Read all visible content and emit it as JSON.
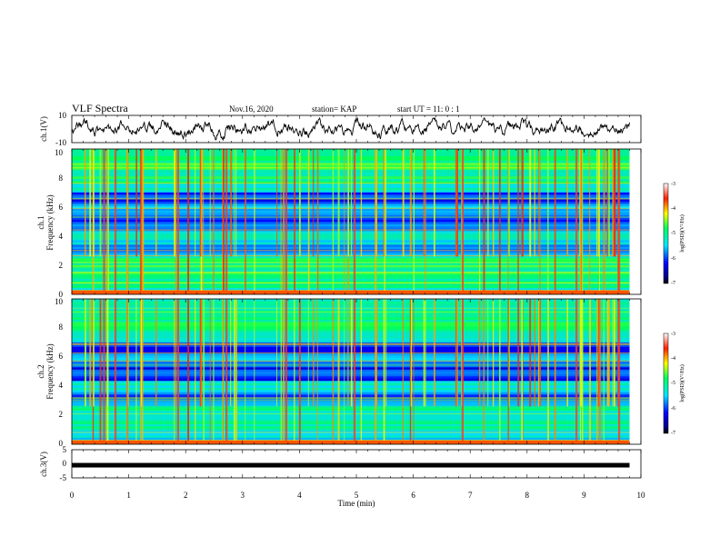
{
  "header": {
    "title": "VLF Spectra",
    "date": "Nov.16, 2020",
    "station": "station= KAP",
    "start": "start  UT  =   11: 0  : 1"
  },
  "chart_data": [
    {
      "type": "line",
      "name": "ch1_waveform",
      "ylabel": "ch.1(V)",
      "ylim": [
        -10,
        10
      ],
      "yticks": [
        "10",
        "-10"
      ],
      "xlim": [
        0,
        10
      ],
      "trace_end_min": 9.8,
      "color": "#000000"
    },
    {
      "type": "heatmap",
      "name": "ch1_spectrogram",
      "ylabel_top": "ch.1",
      "ylabel": "Frequency  (kHz)",
      "ylim": [
        0,
        10
      ],
      "yticks": [
        "0",
        "2",
        "4",
        "6",
        "8",
        "10"
      ],
      "xlim": [
        0,
        10
      ],
      "data_end_min": 9.8,
      "colorbar": {
        "label": "log(PSD)(V²/Hz)",
        "ticks": [
          "-3",
          "-4",
          "-5",
          "-6",
          "-7"
        ],
        "range": [
          -7,
          -3
        ]
      }
    },
    {
      "type": "heatmap",
      "name": "ch2_spectrogram",
      "ylabel_top": "ch.2",
      "ylabel": "Frequency  (kHz)",
      "ylim": [
        0,
        10
      ],
      "yticks": [
        "0",
        "2",
        "4",
        "6",
        "8",
        "10"
      ],
      "xlim": [
        0,
        10
      ],
      "data_end_min": 9.8,
      "colorbar": {
        "label": "log(PSD)(V²/Hz)",
        "ticks": [
          "-3",
          "-4",
          "-5",
          "-6",
          "-7"
        ],
        "range": [
          -7,
          -3
        ]
      }
    },
    {
      "type": "line",
      "name": "ch3_waveform",
      "ylabel": "ch.3(V)",
      "ylim": [
        -5,
        5
      ],
      "yticks": [
        "5",
        "0",
        "-5"
      ],
      "xlim": [
        0,
        10
      ],
      "level": -0.5,
      "trace_end_min": 9.8,
      "color": "#000000"
    }
  ],
  "xaxis": {
    "label": "Time  (min)",
    "ticks": [
      "0",
      "1",
      "2",
      "3",
      "4",
      "5",
      "6",
      "7",
      "8",
      "9",
      "10"
    ]
  }
}
